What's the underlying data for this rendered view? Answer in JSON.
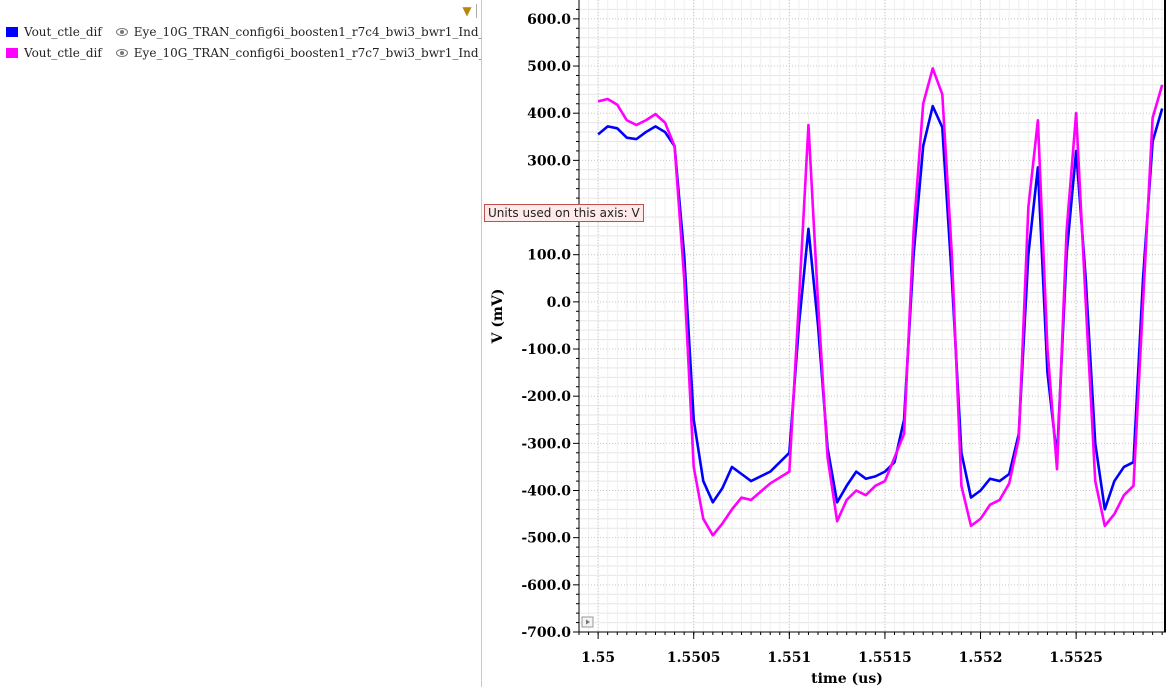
{
  "legend": {
    "items": [
      {
        "signal": "Vout_ctle_dif",
        "source": "Eye_10G_TRAN_config6i_boosten1_r7c4_bwi3_bwr1_Ind_",
        "color": "#0000ff"
      },
      {
        "signal": "Vout_ctle_dif",
        "source": "Eye_10G_TRAN_config6i_boosten1_r7c7_bwi3_bwr1_Ind_",
        "color": "#ff00ff"
      }
    ],
    "filter_icon": "filter-icon",
    "visibility_icon": "eye-icon"
  },
  "tooltip": {
    "text": "Units used on this axis: V"
  },
  "chart_data": {
    "type": "line",
    "xlabel": "time (us)",
    "ylabel": "V (mV)",
    "xlim": [
      1.5499,
      1.55297
    ],
    "ylim": [
      -700,
      640
    ],
    "grid": true,
    "x_ticks": [
      {
        "value": 1.55,
        "label": "1.55"
      },
      {
        "value": 1.5505,
        "label": "1.5505"
      },
      {
        "value": 1.551,
        "label": "1.551"
      },
      {
        "value": 1.5515,
        "label": "1.5515"
      },
      {
        "value": 1.552,
        "label": "1.552"
      },
      {
        "value": 1.5525,
        "label": "1.5525"
      }
    ],
    "y_ticks": [
      {
        "value": 600,
        "label": "600.0"
      },
      {
        "value": 500,
        "label": "500.0"
      },
      {
        "value": 400,
        "label": "400.0"
      },
      {
        "value": 300,
        "label": "300.0"
      },
      {
        "value": 100,
        "label": "100.0"
      },
      {
        "value": 0,
        "label": "0.0"
      },
      {
        "value": -100,
        "label": "-100.0"
      },
      {
        "value": -200,
        "label": "-200.0"
      },
      {
        "value": -300,
        "label": "-300.0"
      },
      {
        "value": -400,
        "label": "-400.0"
      },
      {
        "value": -500,
        "label": "-500.0"
      },
      {
        "value": -600,
        "label": "-600.0"
      },
      {
        "value": -700,
        "label": "-700.0"
      }
    ],
    "series": [
      {
        "color": "#0000ff",
        "x": [
          1.55,
          1.55005,
          1.5501,
          1.55015,
          1.5502,
          1.55025,
          1.5503,
          1.55035,
          1.5504,
          1.55045,
          1.5505,
          1.55055,
          1.5506,
          1.55065,
          1.5507,
          1.55075,
          1.5508,
          1.5509,
          1.551,
          1.55105,
          1.5511,
          1.55115,
          1.5512,
          1.55125,
          1.5513,
          1.55135,
          1.5514,
          1.55145,
          1.5515,
          1.55155,
          1.5516,
          1.55165,
          1.5517,
          1.55175,
          1.5518,
          1.55185,
          1.5519,
          1.55195,
          1.552,
          1.55205,
          1.5521,
          1.55215,
          1.5522,
          1.55225,
          1.5523,
          1.55235,
          1.5524,
          1.55245,
          1.5525,
          1.55255,
          1.5526,
          1.55265,
          1.5527,
          1.55275,
          1.5528,
          1.55285,
          1.5529,
          1.55295
        ],
        "y": [
          355,
          372,
          368,
          348,
          345,
          360,
          372,
          360,
          330,
          100,
          -250,
          -380,
          -425,
          -395,
          -350,
          -365,
          -380,
          -360,
          -320,
          -50,
          155,
          -50,
          -310,
          -425,
          -390,
          -360,
          -375,
          -370,
          -360,
          -340,
          -250,
          100,
          330,
          415,
          370,
          50,
          -320,
          -415,
          -400,
          -375,
          -380,
          -365,
          -280,
          100,
          285,
          -150,
          -330,
          100,
          320,
          50,
          -300,
          -440,
          -380,
          -350,
          -340,
          50,
          340,
          410
        ]
      },
      {
        "color": "#ff00ff",
        "x": [
          1.55,
          1.55005,
          1.5501,
          1.55015,
          1.5502,
          1.55025,
          1.5503,
          1.55035,
          1.5504,
          1.55045,
          1.5505,
          1.55055,
          1.5506,
          1.55065,
          1.5507,
          1.55075,
          1.5508,
          1.5509,
          1.551,
          1.55105,
          1.5511,
          1.55115,
          1.5512,
          1.55125,
          1.5513,
          1.55135,
          1.5514,
          1.55145,
          1.5515,
          1.55155,
          1.5516,
          1.55165,
          1.5517,
          1.55175,
          1.5518,
          1.55185,
          1.5519,
          1.55195,
          1.552,
          1.55205,
          1.5521,
          1.55215,
          1.5522,
          1.55225,
          1.5523,
          1.55235,
          1.5524,
          1.55245,
          1.5525,
          1.55255,
          1.5526,
          1.55265,
          1.5527,
          1.55275,
          1.5528,
          1.55285,
          1.5529,
          1.55295
        ],
        "y": [
          425,
          430,
          418,
          385,
          375,
          385,
          398,
          380,
          330,
          50,
          -350,
          -460,
          -495,
          -470,
          -440,
          -415,
          -420,
          -385,
          -360,
          0,
          375,
          0,
          -330,
          -465,
          -420,
          -400,
          -410,
          -390,
          -380,
          -330,
          -280,
          150,
          420,
          495,
          440,
          100,
          -390,
          -475,
          -460,
          -430,
          -420,
          -385,
          -290,
          200,
          385,
          -100,
          -355,
          150,
          400,
          0,
          -380,
          -475,
          -450,
          -410,
          -390,
          0,
          390,
          460
        ]
      }
    ]
  }
}
